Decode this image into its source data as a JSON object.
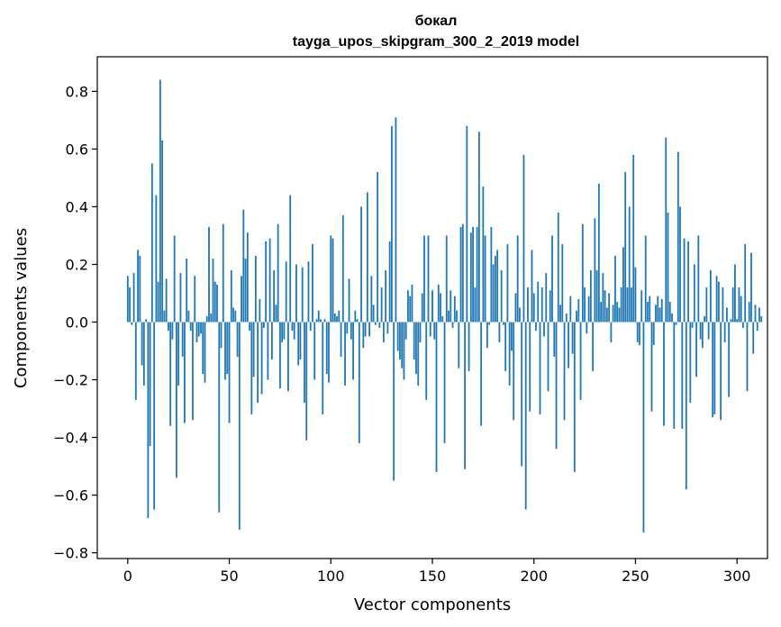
{
  "chart_data": {
    "type": "bar",
    "title": "бокал",
    "subtitle": "tayga_upos_skipgram_300_2_2019 model",
    "xlabel": "Vector components",
    "ylabel": "Components values",
    "xlim": [
      -15,
      315
    ],
    "ylim": [
      -0.82,
      0.92
    ],
    "xticks": [
      0,
      50,
      100,
      150,
      200,
      250,
      300
    ],
    "xtick_labels": [
      "0",
      "50",
      "100",
      "150",
      "200",
      "250",
      "300"
    ],
    "yticks": [
      -0.8,
      -0.6,
      -0.4,
      -0.2,
      0.0,
      0.2,
      0.4,
      0.6,
      0.8
    ],
    "ytick_labels": [
      "−0.8",
      "−0.6",
      "−0.4",
      "−0.2",
      "0.0",
      "0.2",
      "0.4",
      "0.6",
      "0.8"
    ],
    "grid": false,
    "bar_color": "#1f77b4",
    "values": [
      0.16,
      0.12,
      -0.01,
      0.17,
      -0.27,
      0.25,
      0.23,
      -0.15,
      -0.22,
      0.01,
      -0.68,
      -0.43,
      0.55,
      -0.65,
      0.44,
      0.14,
      0.84,
      0.63,
      0.04,
      0.15,
      -0.03,
      -0.36,
      -0.06,
      0.3,
      -0.54,
      -0.22,
      0.17,
      -0.12,
      -0.35,
      0.22,
      0.04,
      -0.03,
      -0.34,
      0.16,
      -0.07,
      -0.05,
      -0.04,
      -0.18,
      -0.21,
      0.02,
      0.33,
      0.03,
      0.22,
      0.14,
      0.13,
      -0.66,
      -0.09,
      0.34,
      -0.2,
      -0.18,
      -0.35,
      0.18,
      0.05,
      0.04,
      -0.12,
      -0.72,
      0.16,
      0.39,
      0.22,
      0.31,
      -0.03,
      -0.32,
      -0.19,
      0.23,
      -0.28,
      0.08,
      -0.25,
      -0.02,
      0.28,
      -0.2,
      0.29,
      -0.13,
      0.18,
      0.06,
      0.34,
      -0.23,
      -0.07,
      -0.06,
      0.21,
      -0.24,
      0.44,
      -0.03,
      -0.06,
      0.2,
      -0.15,
      -0.13,
      0.19,
      -0.28,
      -0.41,
      0.21,
      -0.03,
      0.27,
      -0.2,
      0.01,
      0.04,
      0.01,
      -0.32,
      0.01,
      -0.18,
      -0.21,
      0.3,
      0.29,
      0.03,
      0.02,
      0.04,
      -0.12,
      0.37,
      -0.22,
      -0.04,
      0.15,
      -0.06,
      -0.2,
      0.04,
      0.01,
      -0.42,
      0.4,
      -0.09,
      -0.05,
      0.45,
      -0.05,
      0.16,
      0.06,
      -0.01,
      0.52,
      -0.02,
      0.12,
      -0.07,
      0.18,
      -0.04,
      0.28,
      0.68,
      -0.55,
      0.71,
      -0.1,
      -0.13,
      -0.16,
      -0.2,
      -0.06,
      0.11,
      0.09,
      0.13,
      -0.13,
      -0.18,
      -0.22,
      -0.07,
      0.1,
      0.3,
      -0.27,
      0.3,
      -0.05,
      0.11,
      -0.06,
      -0.52,
      0.13,
      0.1,
      0.02,
      -0.42,
      0.3,
      0.04,
      0.11,
      -0.02,
      0.09,
      0.04,
      -0.16,
      0.33,
      0.34,
      -0.51,
      0.68,
      -0.17,
      0.31,
      0.33,
      0.12,
      0.33,
      0.66,
      -0.36,
      0.47,
      0.3,
      -0.09,
      -0.01,
      0.33,
      0.2,
      0.23,
      0.25,
      -0.07,
      0.18,
      -0.01,
      -0.17,
      0.27,
      -0.22,
      -0.1,
      -0.34,
      0.1,
      0.3,
      0.05,
      -0.5,
      0.58,
      -0.65,
      0.12,
      -0.31,
      0.25,
      0.1,
      -0.03,
      0.14,
      -0.32,
      0.12,
      -0.05,
      0.17,
      -0.24,
      0.11,
      0.3,
      -0.12,
      -0.44,
      0.38,
      0.06,
      0.27,
      -0.34,
      0.03,
      -0.16,
      0.09,
      -0.11,
      -0.52,
      0.04,
      0.08,
      -0.27,
      0.34,
      0.12,
      -0.04,
      0.09,
      0.18,
      -0.17,
      0.36,
      0.18,
      0.48,
      0.07,
      0.17,
      0.11,
      0.05,
      0.1,
      -0.07,
      0.06,
      0.23,
      0.07,
      0.05,
      0.12,
      0.26,
      0.52,
      0.12,
      0.4,
      0.12,
      0.58,
      0.19,
      -0.07,
      -0.08,
      0.11,
      -0.73,
      0.3,
      0.07,
      0.09,
      -0.31,
      -0.08,
      0.06,
      0.09,
      0.05,
      0.08,
      -0.36,
      0.64,
      0.38,
      0.07,
      0.03,
      -0.37,
      -0.01,
      0.59,
      0.4,
      -0.37,
      0.29,
      -0.58,
      0.28,
      -0.28,
      -0.02,
      0.2,
      -0.19,
      0.3,
      -0.06,
      -0.09,
      0.02,
      0.12,
      -0.06,
      0.18,
      -0.33,
      -0.32,
      0.16,
      0.14,
      -0.34,
      0.12,
      -0.07,
      0.05,
      -0.26,
      0.01,
      0.12,
      0.2,
      0.01,
      0.12,
      0.09,
      -0.02,
      0.27,
      -0.24,
      0.07,
      0.24,
      -0.11,
      0.06,
      -0.03,
      0.05,
      0.02
    ]
  }
}
